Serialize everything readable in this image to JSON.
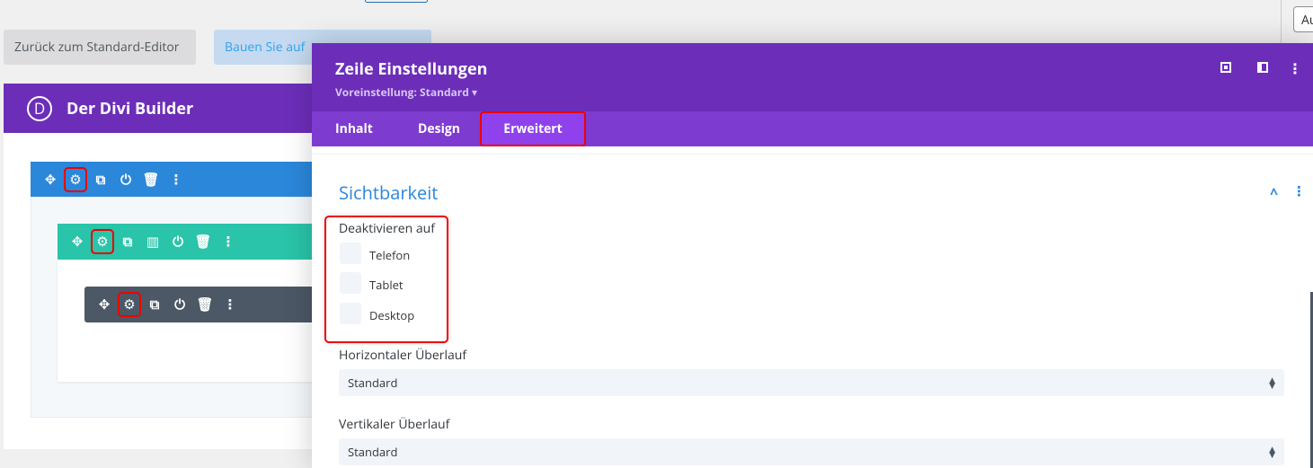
{
  "top_buttons": {
    "back": "Zurück zum Standard-Editor",
    "build": "Bauen Sie auf"
  },
  "right_input": {
    "value": "Au"
  },
  "divi": {
    "title": "Der Divi Builder",
    "logo": "D"
  },
  "modal": {
    "title": "Zeile Einstellungen",
    "preset": "Voreinstellung: Standard ▾",
    "tabs": [
      {
        "label": "Inhalt"
      },
      {
        "label": "Design"
      },
      {
        "label": "Erweitert",
        "active": true
      }
    ],
    "section_title": "Sichtbarkeit",
    "disable_label": "Deaktivieren auf",
    "devices": [
      {
        "label": "Telefon",
        "checked": false
      },
      {
        "label": "Tablet",
        "checked": false
      },
      {
        "label": "Desktop",
        "checked": false
      }
    ],
    "overflow_x": {
      "label": "Horizontaler Überlauf",
      "value": "Standard"
    },
    "overflow_y": {
      "label": "Vertikaler Überlauf",
      "value": "Standard"
    }
  },
  "colors": {
    "purple": "#6c2eb9",
    "tab_bar": "#7e3bd0",
    "section": "#2b87da",
    "row": "#29c4a9",
    "module": "#4c5866",
    "highlight": "#e00000"
  }
}
